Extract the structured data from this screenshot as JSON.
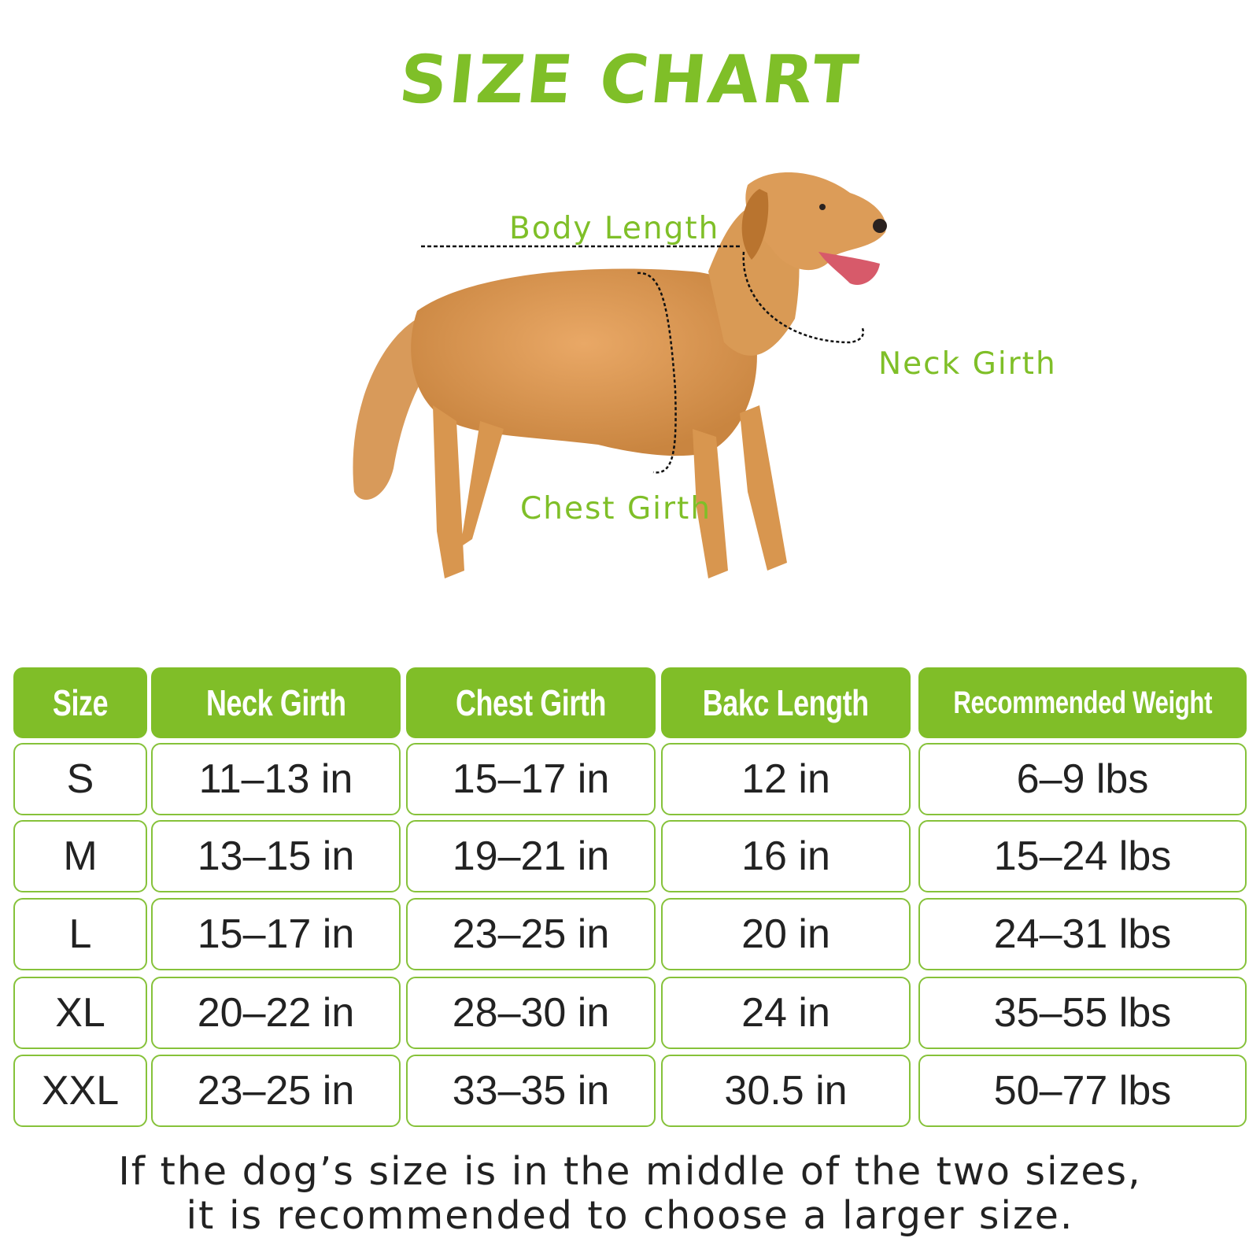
{
  "title": "SIZE CHART",
  "diagram": {
    "labels": {
      "body_length": "Body Length",
      "neck_girth": "Neck Girth",
      "chest_girth": "Chest Girth"
    }
  },
  "table": {
    "headers": [
      "Size",
      "Neck Girth",
      "Chest Girth",
      "Bakc Length",
      "Recommended Weight"
    ],
    "rows": [
      [
        "S",
        "11–13 in",
        "15–17 in",
        "12 in",
        "6–9 lbs"
      ],
      [
        "M",
        "13–15 in",
        "19–21 in",
        "16 in",
        "15–24 lbs"
      ],
      [
        "L",
        "15–17 in",
        "23–25 in",
        "20 in",
        "24–31 lbs"
      ],
      [
        "XL",
        "20–22 in",
        "28–30 in",
        "24 in",
        "35–55 lbs"
      ],
      [
        "XXL",
        "23–25 in",
        "33–35 in",
        "30.5 in",
        "50–77 lbs"
      ]
    ]
  },
  "footer": {
    "line1": "If the dog’s size is in the middle of the two sizes,",
    "line2": "it is recommended to choose a larger size."
  },
  "colors": {
    "accent": "#80be28",
    "text": "#222222"
  }
}
